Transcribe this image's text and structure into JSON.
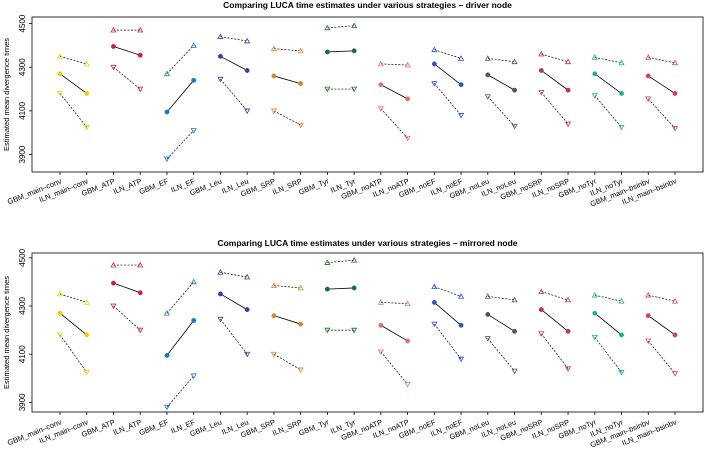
{
  "chart_data": [
    {
      "type": "scatter",
      "title": "Comparing LUCA time estimates under various strategies – driver node",
      "xlabel": "",
      "ylabel": "Estimated mean divergence times",
      "ylim": [
        3820,
        4530
      ],
      "yticks": [
        3900,
        4100,
        4300,
        4500
      ],
      "categories": [
        "GBM_main–conv",
        "ILN_main–conv",
        "GBM_ATP",
        "ILN_ATP",
        "GBM_EF",
        "ILN_EF",
        "GBM_Leu",
        "ILN_Leu",
        "GBM_SRP",
        "ILN_SRP",
        "GBM_Tyr",
        "ILN_Tyr",
        "GBM_noATP",
        "ILN_noATP",
        "GBM_noEF",
        "ILN_noEF",
        "GBM_noLeu",
        "ILN_noLeu",
        "GBM_noSRP",
        "ILN_noSRP",
        "GBM_noTyr",
        "ILN_noTyr",
        "GBM_main–bsinbv",
        "ILN_main–bsinbv"
      ],
      "colors": [
        "#e8d000",
        "#e8d000",
        "#cc2233",
        "#cc2233",
        "#1f77c4",
        "#1f77c4",
        "#3b3fa0",
        "#3b3fa0",
        "#d9862b",
        "#d9862b",
        "#1e6b3a",
        "#1e6b3a",
        "#e07070",
        "#e07070",
        "#2e53c9",
        "#2e53c9",
        "#555555",
        "#555555",
        "#b03a48",
        "#b03a48",
        "#17b58f",
        "#17b58f",
        "#cc4455",
        "#cc4455"
      ],
      "series": [
        {
          "name": "upper",
          "marker": "triangle-up",
          "values": [
            4350,
            4315,
            4470,
            4470,
            4270,
            4400,
            4440,
            4420,
            4385,
            4375,
            4480,
            4490,
            4315,
            4310,
            4380,
            4340,
            4340,
            4325,
            4360,
            4325,
            4345,
            4320,
            4345,
            4320
          ]
        },
        {
          "name": "mean",
          "marker": "circle",
          "values": [
            4270,
            4180,
            4395,
            4355,
            4095,
            4240,
            4350,
            4285,
            4260,
            4225,
            4370,
            4375,
            4220,
            4155,
            4315,
            4220,
            4265,
            4195,
            4285,
            4195,
            4270,
            4180,
            4260,
            4180
          ]
        },
        {
          "name": "lower",
          "marker": "triangle-down",
          "values": [
            4180,
            4025,
            4300,
            4200,
            3880,
            4010,
            4245,
            4100,
            4100,
            4035,
            4200,
            4200,
            4110,
            3975,
            4225,
            4080,
            4165,
            4030,
            4185,
            4040,
            4170,
            4025,
            4155,
            4020
          ]
        }
      ]
    },
    {
      "type": "scatter",
      "title": "Comparing LUCA time estimates under various strategies – mirrored node",
      "xlabel": "",
      "ylabel": "Estimated mean divergence times",
      "ylim": [
        3860,
        4520
      ],
      "yticks": [
        3900,
        4100,
        4300,
        4500
      ],
      "categories": [
        "GBM_main–conv",
        "ILN_main–conv",
        "GBM_ATP",
        "ILN_ATP",
        "GBM_EF",
        "ILN_EF",
        "GBM_Leu",
        "ILN_Leu",
        "GBM_SRP",
        "ILN_SRP",
        "GBM_Tyr",
        "ILN_Tyr",
        "GBM_noATP",
        "ILN_noATP",
        "GBM_noEF",
        "ILN_noEF",
        "GBM_noLeu",
        "ILN_noLeu",
        "GBM_noSRP",
        "ILN_noSRP",
        "GBM_noTyr",
        "ILN_noTyr",
        "GBM_main–bsinbv",
        "ILN_main–bsinbv"
      ],
      "colors": [
        "#e8d000",
        "#e8d000",
        "#cc2233",
        "#cc2233",
        "#1f77c4",
        "#1f77c4",
        "#3b3fa0",
        "#3b3fa0",
        "#d9862b",
        "#d9862b",
        "#1e6b3a",
        "#1e6b3a",
        "#e07070",
        "#e07070",
        "#2e53c9",
        "#2e53c9",
        "#555555",
        "#555555",
        "#b03a48",
        "#b03a48",
        "#17b58f",
        "#17b58f",
        "#cc4455",
        "#cc4455"
      ],
      "series": [
        {
          "name": "upper",
          "marker": "triangle-up",
          "values": [
            4350,
            4315,
            4470,
            4470,
            4270,
            4400,
            4440,
            4420,
            4385,
            4375,
            4480,
            4490,
            4315,
            4310,
            4380,
            4340,
            4340,
            4325,
            4360,
            4325,
            4345,
            4320,
            4345,
            4320
          ]
        },
        {
          "name": "mean",
          "marker": "circle",
          "values": [
            4270,
            4180,
            4395,
            4355,
            4095,
            4240,
            4350,
            4285,
            4260,
            4225,
            4370,
            4375,
            4220,
            4155,
            4315,
            4220,
            4265,
            4195,
            4285,
            4195,
            4270,
            4180,
            4260,
            4180
          ]
        },
        {
          "name": "lower",
          "marker": "triangle-down",
          "values": [
            4180,
            4025,
            4300,
            4200,
            3880,
            4010,
            4245,
            4100,
            4100,
            4035,
            4200,
            4200,
            4110,
            3975,
            4225,
            4080,
            4165,
            4030,
            4185,
            4040,
            4170,
            4025,
            4155,
            4020
          ]
        }
      ]
    }
  ]
}
